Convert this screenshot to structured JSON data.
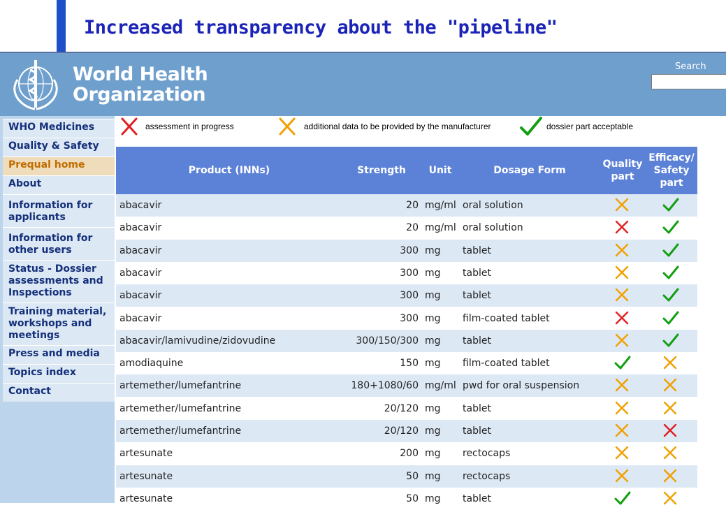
{
  "slide": {
    "title": "Increased transparency about the \"pipeline\""
  },
  "header": {
    "org_name_line1": "World Health",
    "org_name_line2": "Organization",
    "search_label": "Search",
    "search_value": ""
  },
  "sidebar": {
    "items": [
      {
        "label": "WHO Medicines"
      },
      {
        "label": "Quality & Safety"
      },
      {
        "label": "Prequal home"
      },
      {
        "label": "About"
      },
      {
        "label": "Information for applicants"
      },
      {
        "label": "Information for other users"
      },
      {
        "label": "Status - Dossier assessments and Inspections"
      },
      {
        "label": "Training material, workshops and meetings"
      },
      {
        "label": "Press and media"
      },
      {
        "label": "Topics index"
      },
      {
        "label": "Contact"
      }
    ]
  },
  "legend": {
    "in_progress": "assessment in progress",
    "additional_data": "additional data to be provided by the manufacturer",
    "acceptable": "dossier part acceptable"
  },
  "colors": {
    "in_progress": "#e02020",
    "additional_data": "#f0a000",
    "acceptable": "#12a012"
  },
  "table": {
    "headers": {
      "product": "Product (INNs)",
      "strength": "Strength",
      "unit": "Unit",
      "form": "Dosage Form",
      "quality": "Quality part",
      "efficacy": "Efficacy/ Safety part"
    },
    "rows": [
      {
        "product": "abacavir",
        "strength": "20",
        "unit": "mg/ml",
        "form": "oral solution",
        "quality": "additional_data",
        "efficacy": "acceptable"
      },
      {
        "product": "abacavir",
        "strength": "20",
        "unit": "mg/ml",
        "form": "oral solution",
        "quality": "in_progress",
        "efficacy": "acceptable"
      },
      {
        "product": "abacavir",
        "strength": "300",
        "unit": "mg",
        "form": "tablet",
        "quality": "additional_data",
        "efficacy": "acceptable"
      },
      {
        "product": "abacavir",
        "strength": "300",
        "unit": "mg",
        "form": "tablet",
        "quality": "additional_data",
        "efficacy": "acceptable"
      },
      {
        "product": "abacavir",
        "strength": "300",
        "unit": "mg",
        "form": "tablet",
        "quality": "additional_data",
        "efficacy": "acceptable"
      },
      {
        "product": "abacavir",
        "strength": "300",
        "unit": "mg",
        "form": "film-coated tablet",
        "quality": "in_progress",
        "efficacy": "acceptable"
      },
      {
        "product": "abacavir/lamivudine/zidovudine",
        "strength": "300/150/300",
        "unit": "mg",
        "form": "tablet",
        "quality": "additional_data",
        "efficacy": "acceptable"
      },
      {
        "product": "amodiaquine",
        "strength": "150",
        "unit": "mg",
        "form": "film-coated tablet",
        "quality": "acceptable",
        "efficacy": "additional_data"
      },
      {
        "product": "artemether/lumefantrine",
        "strength": "180+1080/60",
        "unit": "mg/ml",
        "form": "pwd for oral suspension",
        "quality": "additional_data",
        "efficacy": "additional_data"
      },
      {
        "product": "artemether/lumefantrine",
        "strength": "20/120",
        "unit": "mg",
        "form": "tablet",
        "quality": "additional_data",
        "efficacy": "additional_data"
      },
      {
        "product": "artemether/lumefantrine",
        "strength": "20/120",
        "unit": "mg",
        "form": "tablet",
        "quality": "additional_data",
        "efficacy": "in_progress"
      },
      {
        "product": "artesunate",
        "strength": "200",
        "unit": "mg",
        "form": "rectocaps",
        "quality": "additional_data",
        "efficacy": "additional_data"
      },
      {
        "product": "artesunate",
        "strength": "50",
        "unit": "mg",
        "form": "rectocaps",
        "quality": "additional_data",
        "efficacy": "additional_data"
      },
      {
        "product": "artesunate",
        "strength": "50",
        "unit": "mg",
        "form": "tablet",
        "quality": "acceptable",
        "efficacy": "additional_data"
      }
    ]
  }
}
